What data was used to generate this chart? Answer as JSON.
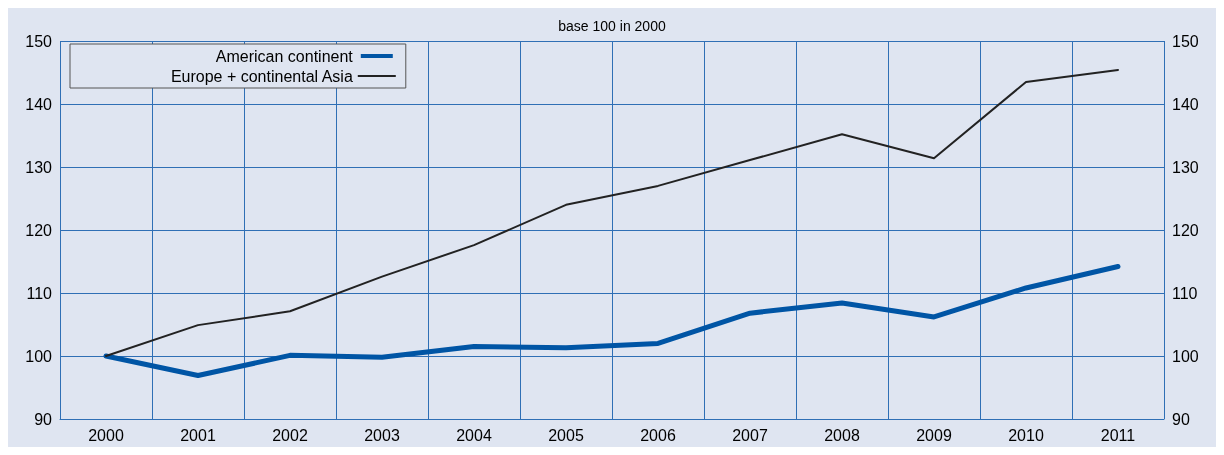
{
  "chart_data": {
    "type": "line",
    "title": "base 100 in 2000",
    "categories": [
      "2000",
      "2001",
      "2002",
      "2003",
      "2004",
      "2005",
      "2006",
      "2007",
      "2008",
      "2009",
      "2010",
      "2011"
    ],
    "series": [
      {
        "name": "American continent",
        "color": "#0055a5",
        "values": [
          100,
          96.9,
          100.1,
          99.8,
          101.5,
          101.3,
          102,
          106.8,
          108.4,
          106.2,
          110.8,
          114.2
        ]
      },
      {
        "name": "Europe + continental Asia",
        "color": "#222222",
        "values": [
          100,
          104.9,
          107.1,
          112.6,
          117.6,
          124,
          127,
          131.1,
          135.2,
          131.4,
          143.5,
          145.4
        ]
      }
    ],
    "ylim": [
      90,
      150
    ],
    "yticks": [
      90,
      100,
      110,
      120,
      130,
      140,
      150
    ],
    "y2lim": [
      90,
      150
    ],
    "y2ticks": [
      90,
      100,
      110,
      120,
      130,
      140,
      150
    ],
    "grid": true,
    "legend": "top left",
    "marker": "none",
    "line_style": "solid"
  }
}
